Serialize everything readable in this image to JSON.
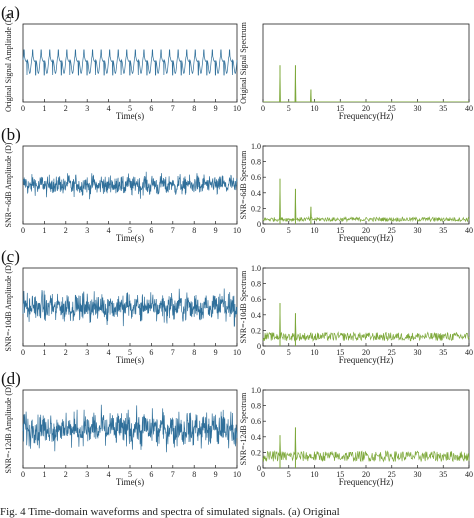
{
  "caption": "Fig. 4   Time-domain waveforms and spectra of simulated signals. (a) Original",
  "colors": {
    "time": "#2f6f9a",
    "freq": "#7da83a",
    "axis": "#222222"
  },
  "rows": [
    {
      "label": "(a)",
      "ylabel_time": "Original Signal Amplitude (D)",
      "ylabel_freq": "Original Signal Spectrum"
    },
    {
      "label": "(b)",
      "ylabel_time": "SNR=-6dB Amplitude (D)",
      "ylabel_freq": "SNR=-6dB Spectrum"
    },
    {
      "label": "(c)",
      "ylabel_time": "SNR=-10dB Amplitude (D)",
      "ylabel_freq": "SNR=-10dB Spectrum"
    },
    {
      "label": "(d)",
      "ylabel_time": "SNR=-12dB Amplitude (D)",
      "ylabel_freq": "SNR=-12dB Spectrum"
    }
  ],
  "chart_data": [
    {
      "type": "line",
      "panel": "a-time",
      "xlabel": "Time(s)",
      "xlim": [
        0,
        10
      ],
      "xticks": [
        "0",
        "1",
        "2",
        "3",
        "4",
        "5",
        "6",
        "7",
        "8",
        "9",
        "10"
      ],
      "signal": {
        "kind": "periodic",
        "period_s": 0.4,
        "amplitude": 0.7
      }
    },
    {
      "type": "line",
      "panel": "a-spectrum",
      "xlabel": "Frequency(Hz)",
      "xlim": [
        0,
        40
      ],
      "ylim": [
        0,
        1
      ],
      "xticks": [
        "0",
        "5",
        "10",
        "15",
        "20",
        "25",
        "30",
        "35",
        "40"
      ],
      "yticks": [],
      "peaks": [
        {
          "x": 3.3,
          "y": 0.47
        },
        {
          "x": 6.3,
          "y": 0.47
        },
        {
          "x": 9.3,
          "y": 0.16
        }
      ]
    },
    {
      "type": "line",
      "panel": "b-time",
      "xlabel": "Time(s)",
      "xlim": [
        0,
        10
      ],
      "xticks": [
        "0",
        "1",
        "2",
        "3",
        "4",
        "5",
        "6",
        "7",
        "8",
        "9",
        "10"
      ],
      "signal": {
        "kind": "noisy",
        "snr_db": -6
      }
    },
    {
      "type": "line",
      "panel": "b-spectrum",
      "xlabel": "Frequency(Hz)",
      "xlim": [
        0,
        40
      ],
      "ylim": [
        0,
        1
      ],
      "xticks": [
        "0",
        "5",
        "10",
        "15",
        "20",
        "25",
        "30",
        "35",
        "40"
      ],
      "yticks": [
        "0",
        "0.2",
        "0.4",
        "0.6",
        "0.8",
        "1.0"
      ],
      "peaks": [
        {
          "x": 3.3,
          "y": 0.58
        },
        {
          "x": 6.3,
          "y": 0.45
        },
        {
          "x": 9.3,
          "y": 0.22
        }
      ],
      "noise_floor": 0.06
    },
    {
      "type": "line",
      "panel": "c-time",
      "xlabel": "Time(s)",
      "xlim": [
        0,
        10
      ],
      "xticks": [
        "0",
        "1",
        "2",
        "3",
        "4",
        "5",
        "6",
        "7",
        "8",
        "9",
        "10"
      ],
      "signal": {
        "kind": "noisy",
        "snr_db": -10
      }
    },
    {
      "type": "line",
      "panel": "c-spectrum",
      "xlabel": "Frequency(Hz)",
      "xlim": [
        0,
        40
      ],
      "ylim": [
        0,
        1
      ],
      "xticks": [
        "0",
        "5",
        "10",
        "15",
        "20",
        "25",
        "30",
        "35",
        "40"
      ],
      "yticks": [
        "0",
        "0.2",
        "0.4",
        "0.6",
        "0.8",
        "1.0"
      ],
      "peaks": [
        {
          "x": 3.3,
          "y": 0.55
        },
        {
          "x": 6.3,
          "y": 0.42
        }
      ],
      "noise_floor": 0.12
    },
    {
      "type": "line",
      "panel": "d-time",
      "xlabel": "Time(s)",
      "xlim": [
        0,
        10
      ],
      "xticks": [
        "0",
        "1",
        "2",
        "3",
        "4",
        "5",
        "6",
        "7",
        "8",
        "9",
        "10"
      ],
      "signal": {
        "kind": "noisy",
        "snr_db": -12
      }
    },
    {
      "type": "line",
      "panel": "d-spectrum",
      "xlabel": "Frequency(Hz)",
      "xlim": [
        0,
        40
      ],
      "ylim": [
        0,
        1
      ],
      "xticks": [
        "0",
        "5",
        "10",
        "15",
        "20",
        "25",
        "30",
        "35",
        "40"
      ],
      "yticks": [
        "0",
        "0.2",
        "0.4",
        "0.6",
        "0.8",
        "1.0"
      ],
      "peaks": [
        {
          "x": 3.3,
          "y": 0.42
        },
        {
          "x": 6.3,
          "y": 0.52
        }
      ],
      "noise_floor": 0.15
    }
  ]
}
